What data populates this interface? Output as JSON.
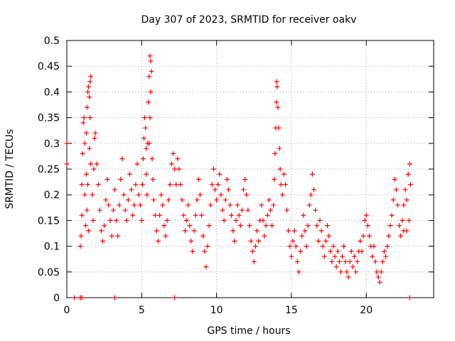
{
  "chart_data": {
    "type": "scatter",
    "title": "Day 307 of 2023, SRMTID for receiver oakv",
    "xlabel": "GPS time / hours",
    "ylabel": "SRMTID / TECUs",
    "xlim": [
      0,
      24.5
    ],
    "ylim": [
      0,
      0.5
    ],
    "xticks": [
      0,
      5,
      10,
      15,
      20
    ],
    "yticks": [
      0,
      0.05,
      0.1,
      0.15,
      0.2,
      0.25,
      0.3,
      0.35,
      0.4,
      0.45,
      0.5
    ],
    "grid": true,
    "legend": "none",
    "marker": "+",
    "color": "#ff0000",
    "series": [
      {
        "name": "SRMTID",
        "points": [
          [
            0.0,
            0.3
          ],
          [
            0.0,
            0.26
          ],
          [
            0.5,
            0.0
          ],
          [
            0.9,
            0.0
          ],
          [
            1.0,
            0.0
          ],
          [
            3.2,
            0.0
          ],
          [
            7.2,
            0.0
          ],
          [
            22.9,
            0.0
          ],
          [
            0.9,
            0.1
          ],
          [
            0.95,
            0.12
          ],
          [
            1.0,
            0.16
          ],
          [
            1.0,
            0.22
          ],
          [
            1.05,
            0.28
          ],
          [
            1.1,
            0.34
          ],
          [
            1.15,
            0.35
          ],
          [
            1.2,
            0.3
          ],
          [
            1.2,
            0.2
          ],
          [
            1.25,
            0.14
          ],
          [
            1.3,
            0.24
          ],
          [
            1.3,
            0.32
          ],
          [
            1.35,
            0.37
          ],
          [
            1.4,
            0.4
          ],
          [
            1.45,
            0.41
          ],
          [
            1.5,
            0.39
          ],
          [
            1.55,
            0.42
          ],
          [
            1.6,
            0.43
          ],
          [
            1.55,
            0.35
          ],
          [
            1.5,
            0.29
          ],
          [
            1.4,
            0.22
          ],
          [
            1.35,
            0.17
          ],
          [
            1.45,
            0.13
          ],
          [
            1.6,
            0.26
          ],
          [
            1.7,
            0.2
          ],
          [
            1.75,
            0.15
          ],
          [
            1.8,
            0.25
          ],
          [
            1.85,
            0.31
          ],
          [
            1.9,
            0.32
          ],
          [
            2.0,
            0.26
          ],
          [
            2.1,
            0.22
          ],
          [
            2.2,
            0.17
          ],
          [
            2.3,
            0.13
          ],
          [
            2.4,
            0.11
          ],
          [
            2.5,
            0.14
          ],
          [
            2.6,
            0.19
          ],
          [
            2.7,
            0.23
          ],
          [
            2.8,
            0.18
          ],
          [
            2.9,
            0.15
          ],
          [
            3.0,
            0.12
          ],
          [
            3.1,
            0.17
          ],
          [
            3.2,
            0.21
          ],
          [
            3.3,
            0.15
          ],
          [
            3.4,
            0.12
          ],
          [
            3.5,
            0.18
          ],
          [
            3.6,
            0.23
          ],
          [
            3.7,
            0.27
          ],
          [
            3.8,
            0.2
          ],
          [
            3.9,
            0.17
          ],
          [
            4.0,
            0.15
          ],
          [
            4.1,
            0.19
          ],
          [
            4.2,
            0.24
          ],
          [
            4.3,
            0.21
          ],
          [
            4.4,
            0.16
          ],
          [
            4.5,
            0.18
          ],
          [
            4.6,
            0.22
          ],
          [
            4.7,
            0.26
          ],
          [
            4.8,
            0.2
          ],
          [
            4.9,
            0.18
          ],
          [
            5.0,
            0.15
          ],
          [
            5.05,
            0.22
          ],
          [
            5.1,
            0.27
          ],
          [
            5.15,
            0.31
          ],
          [
            5.2,
            0.35
          ],
          [
            5.25,
            0.33
          ],
          [
            5.3,
            0.29
          ],
          [
            5.3,
            0.24
          ],
          [
            5.35,
            0.2
          ],
          [
            5.4,
            0.3
          ],
          [
            5.45,
            0.38
          ],
          [
            5.5,
            0.43
          ],
          [
            5.55,
            0.47
          ],
          [
            5.6,
            0.46
          ],
          [
            5.65,
            0.44
          ],
          [
            5.6,
            0.4
          ],
          [
            5.55,
            0.35
          ],
          [
            5.5,
            0.3
          ],
          [
            5.7,
            0.27
          ],
          [
            5.75,
            0.23
          ],
          [
            5.8,
            0.19
          ],
          [
            5.9,
            0.16
          ],
          [
            6.0,
            0.13
          ],
          [
            6.1,
            0.11
          ],
          [
            6.2,
            0.16
          ],
          [
            6.3,
            0.2
          ],
          [
            6.4,
            0.18
          ],
          [
            6.5,
            0.14
          ],
          [
            6.6,
            0.12
          ],
          [
            6.7,
            0.15
          ],
          [
            6.8,
            0.19
          ],
          [
            6.9,
            0.22
          ],
          [
            7.0,
            0.26
          ],
          [
            7.1,
            0.28
          ],
          [
            7.2,
            0.25
          ],
          [
            7.3,
            0.22
          ],
          [
            7.4,
            0.27
          ],
          [
            7.5,
            0.25
          ],
          [
            7.6,
            0.22
          ],
          [
            7.7,
            0.19
          ],
          [
            7.8,
            0.16
          ],
          [
            7.9,
            0.13
          ],
          [
            8.0,
            0.15
          ],
          [
            8.1,
            0.18
          ],
          [
            8.2,
            0.14
          ],
          [
            8.3,
            0.11
          ],
          [
            8.4,
            0.09
          ],
          [
            8.5,
            0.13
          ],
          [
            8.6,
            0.16
          ],
          [
            8.7,
            0.19
          ],
          [
            8.8,
            0.23
          ],
          [
            8.9,
            0.2
          ],
          [
            9.0,
            0.16
          ],
          [
            9.1,
            0.12
          ],
          [
            9.2,
            0.09
          ],
          [
            9.3,
            0.06
          ],
          [
            9.4,
            0.1
          ],
          [
            9.5,
            0.14
          ],
          [
            9.6,
            0.18
          ],
          [
            9.7,
            0.22
          ],
          [
            9.8,
            0.25
          ],
          [
            9.9,
            0.21
          ],
          [
            10.0,
            0.19
          ],
          [
            10.1,
            0.22
          ],
          [
            10.2,
            0.24
          ],
          [
            10.3,
            0.2
          ],
          [
            10.4,
            0.17
          ],
          [
            10.5,
            0.15
          ],
          [
            10.6,
            0.19
          ],
          [
            10.7,
            0.23
          ],
          [
            10.8,
            0.21
          ],
          [
            10.9,
            0.18
          ],
          [
            11.0,
            0.16
          ],
          [
            11.1,
            0.13
          ],
          [
            11.2,
            0.11
          ],
          [
            11.3,
            0.15
          ],
          [
            11.4,
            0.18
          ],
          [
            11.5,
            0.16
          ],
          [
            11.6,
            0.14
          ],
          [
            11.7,
            0.17
          ],
          [
            11.8,
            0.21
          ],
          [
            11.9,
            0.23
          ],
          [
            12.0,
            0.2
          ],
          [
            12.1,
            0.17
          ],
          [
            12.2,
            0.14
          ],
          [
            12.3,
            0.11
          ],
          [
            12.4,
            0.09
          ],
          [
            12.5,
            0.07
          ],
          [
            12.6,
            0.1
          ],
          [
            12.7,
            0.13
          ],
          [
            12.8,
            0.11
          ],
          [
            12.9,
            0.15
          ],
          [
            13.0,
            0.18
          ],
          [
            13.1,
            0.15
          ],
          [
            13.2,
            0.12
          ],
          [
            13.3,
            0.14
          ],
          [
            13.4,
            0.16
          ],
          [
            13.5,
            0.19
          ],
          [
            13.6,
            0.17
          ],
          [
            13.7,
            0.14
          ],
          [
            13.8,
            0.18
          ],
          [
            13.85,
            0.23
          ],
          [
            13.9,
            0.28
          ],
          [
            13.95,
            0.33
          ],
          [
            14.0,
            0.38
          ],
          [
            14.02,
            0.42
          ],
          [
            14.05,
            0.41
          ],
          [
            14.1,
            0.37
          ],
          [
            14.15,
            0.33
          ],
          [
            14.2,
            0.29
          ],
          [
            14.25,
            0.25
          ],
          [
            14.3,
            0.22
          ],
          [
            14.4,
            0.2
          ],
          [
            14.5,
            0.24
          ],
          [
            14.6,
            0.22
          ],
          [
            14.7,
            0.17
          ],
          [
            14.8,
            0.13
          ],
          [
            14.9,
            0.1
          ],
          [
            15.0,
            0.08
          ],
          [
            15.1,
            0.11
          ],
          [
            15.2,
            0.13
          ],
          [
            15.3,
            0.1
          ],
          [
            15.4,
            0.07
          ],
          [
            15.5,
            0.05
          ],
          [
            15.6,
            0.09
          ],
          [
            15.7,
            0.12
          ],
          [
            15.8,
            0.16
          ],
          [
            15.9,
            0.13
          ],
          [
            16.0,
            0.1
          ],
          [
            16.1,
            0.14
          ],
          [
            16.2,
            0.18
          ],
          [
            16.3,
            0.2
          ],
          [
            16.4,
            0.24
          ],
          [
            16.5,
            0.21
          ],
          [
            16.6,
            0.17
          ],
          [
            16.7,
            0.14
          ],
          [
            16.8,
            0.11
          ],
          [
            16.9,
            0.15
          ],
          [
            17.0,
            0.13
          ],
          [
            17.1,
            0.1
          ],
          [
            17.2,
            0.08
          ],
          [
            17.3,
            0.11
          ],
          [
            17.4,
            0.14
          ],
          [
            17.5,
            0.12
          ],
          [
            17.6,
            0.09
          ],
          [
            17.7,
            0.07
          ],
          [
            17.8,
            0.1
          ],
          [
            17.9,
            0.08
          ],
          [
            18.0,
            0.06
          ],
          [
            18.1,
            0.09
          ],
          [
            18.2,
            0.07
          ],
          [
            18.3,
            0.05
          ],
          [
            18.4,
            0.08
          ],
          [
            18.5,
            0.1
          ],
          [
            18.6,
            0.07
          ],
          [
            18.7,
            0.05
          ],
          [
            18.8,
            0.04
          ],
          [
            18.9,
            0.07
          ],
          [
            19.0,
            0.09
          ],
          [
            19.1,
            0.06
          ],
          [
            19.2,
            0.08
          ],
          [
            19.3,
            0.05
          ],
          [
            19.4,
            0.07
          ],
          [
            19.5,
            0.09
          ],
          [
            19.6,
            0.11
          ],
          [
            19.7,
            0.09
          ],
          [
            19.8,
            0.12
          ],
          [
            19.9,
            0.15
          ],
          [
            20.0,
            0.16
          ],
          [
            20.1,
            0.14
          ],
          [
            20.2,
            0.12
          ],
          [
            20.3,
            0.1
          ],
          [
            20.4,
            0.08
          ],
          [
            20.5,
            0.1
          ],
          [
            20.6,
            0.07
          ],
          [
            20.7,
            0.05
          ],
          [
            20.8,
            0.04
          ],
          [
            20.9,
            0.03
          ],
          [
            21.0,
            0.05
          ],
          [
            21.1,
            0.07
          ],
          [
            21.2,
            0.09
          ],
          [
            21.3,
            0.08
          ],
          [
            21.4,
            0.1
          ],
          [
            21.5,
            0.12
          ],
          [
            21.6,
            0.14
          ],
          [
            21.7,
            0.16
          ],
          [
            21.8,
            0.19
          ],
          [
            21.9,
            0.23
          ],
          [
            22.0,
            0.21
          ],
          [
            22.1,
            0.18
          ],
          [
            22.2,
            0.14
          ],
          [
            22.3,
            0.12
          ],
          [
            22.4,
            0.15
          ],
          [
            22.5,
            0.18
          ],
          [
            22.6,
            0.21
          ],
          [
            22.7,
            0.19
          ],
          [
            22.8,
            0.24
          ],
          [
            22.9,
            0.26
          ],
          [
            22.95,
            0.22
          ],
          [
            22.85,
            0.15
          ],
          [
            22.7,
            0.13
          ],
          [
            22.5,
            0.13
          ]
        ]
      }
    ]
  }
}
